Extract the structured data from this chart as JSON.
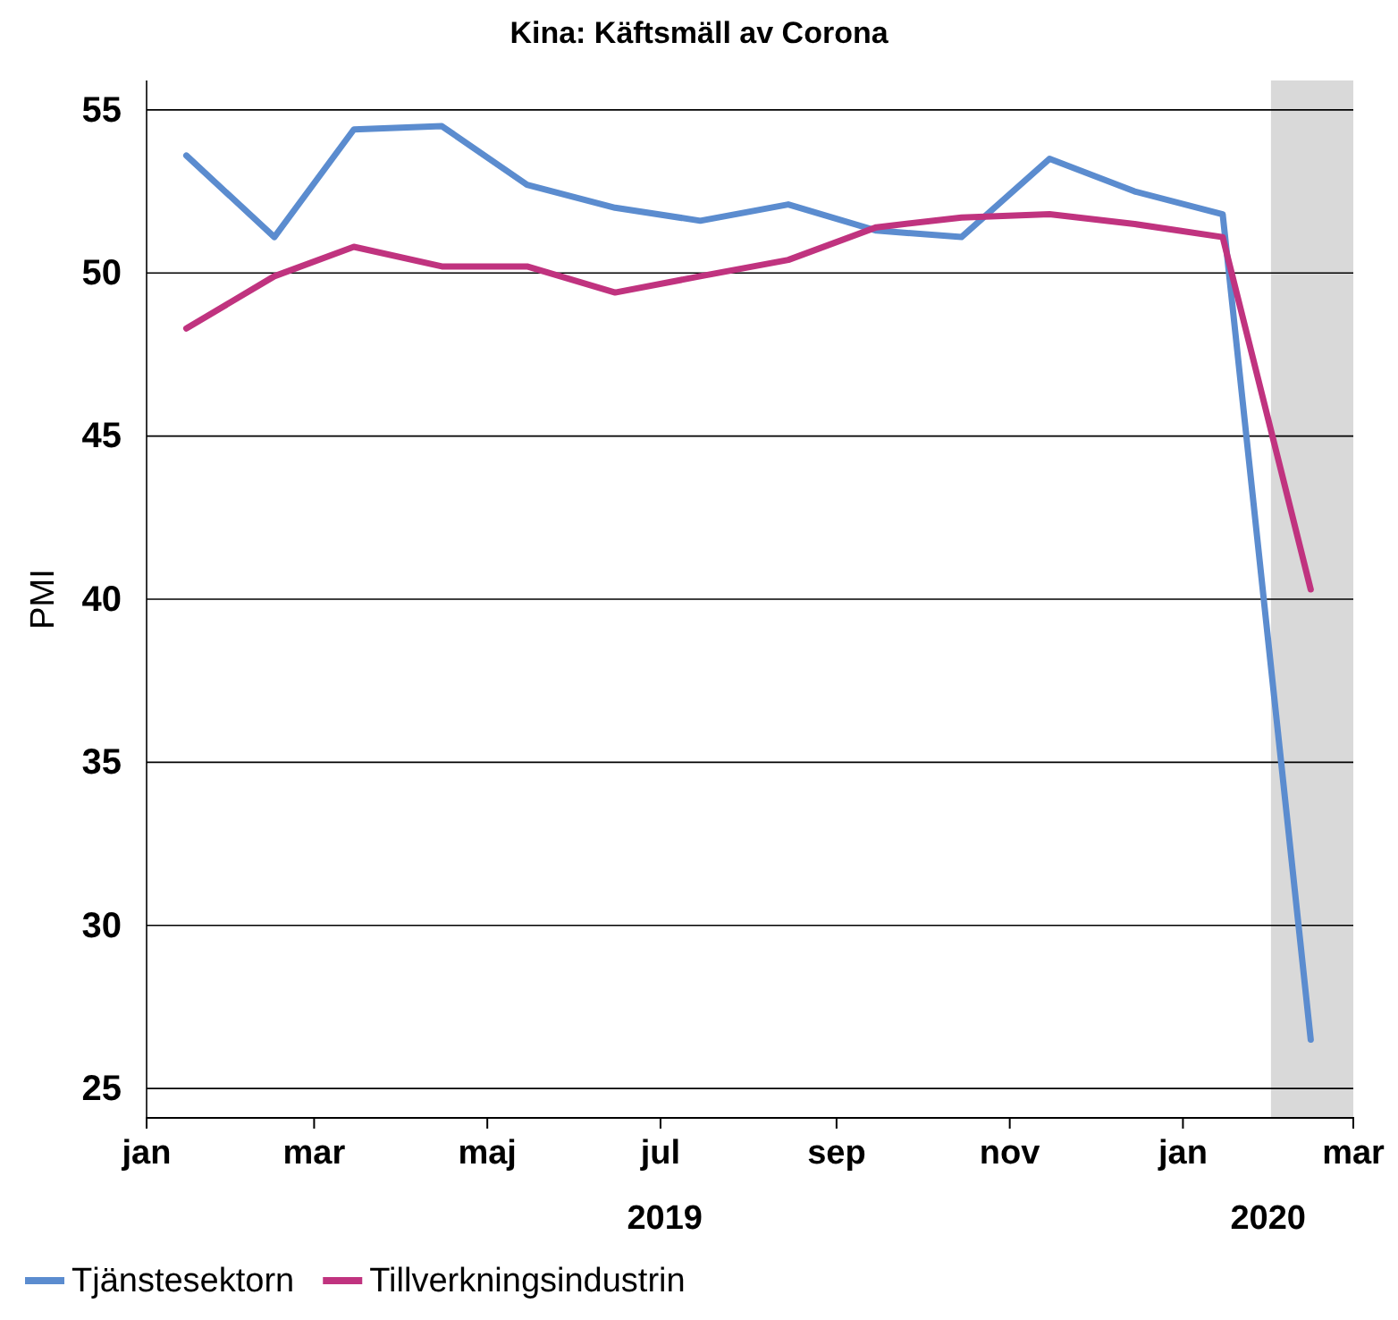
{
  "chart_data": {
    "type": "line",
    "title": "Kina: Käftsmäll av Corona",
    "ylabel": "PMI",
    "x": [
      "2019-01-15",
      "2019-02-15",
      "2019-03-15",
      "2019-04-15",
      "2019-05-15",
      "2019-06-15",
      "2019-07-15",
      "2019-08-15",
      "2019-09-15",
      "2019-10-15",
      "2019-11-15",
      "2019-12-15",
      "2020-01-15",
      "2020-02-15"
    ],
    "series": [
      {
        "name": "Tjänstesektorn",
        "color": "#5b8ccf",
        "values": [
          53.6,
          51.1,
          54.4,
          54.5,
          52.7,
          52.0,
          51.6,
          52.1,
          51.3,
          51.1,
          53.5,
          52.5,
          51.8,
          26.5
        ]
      },
      {
        "name": "Tillverkningsindustrin",
        "color": "#c0337f",
        "values": [
          48.3,
          49.9,
          50.8,
          50.2,
          50.2,
          49.4,
          49.9,
          50.4,
          51.4,
          51.7,
          51.8,
          51.5,
          51.1,
          40.3
        ]
      }
    ],
    "xlim": [
      "2019-01-01",
      "2020-03-01"
    ],
    "xticks": [
      {
        "value": "2019-01-01",
        "label": "jan"
      },
      {
        "value": "2019-03-01",
        "label": "mar"
      },
      {
        "value": "2019-05-01",
        "label": "maj"
      },
      {
        "value": "2019-07-01",
        "label": "jul"
      },
      {
        "value": "2019-09-01",
        "label": "sep"
      },
      {
        "value": "2019-11-01",
        "label": "nov"
      },
      {
        "value": "2020-01-01",
        "label": "jan"
      },
      {
        "value": "2020-03-01",
        "label": "mar"
      }
    ],
    "ylim": [
      24.1,
      55.9
    ],
    "yticks": [
      25,
      30,
      35,
      40,
      45,
      50,
      55
    ],
    "bands": [
      {
        "axis": "x",
        "from": "2020-02-01",
        "to": "2020-03-01",
        "color": "#d9d9d9"
      }
    ],
    "annotations": [
      "2019",
      "2020"
    ],
    "grid": "y",
    "legend": "bottom",
    "marker": "none",
    "line_style": "solid"
  }
}
